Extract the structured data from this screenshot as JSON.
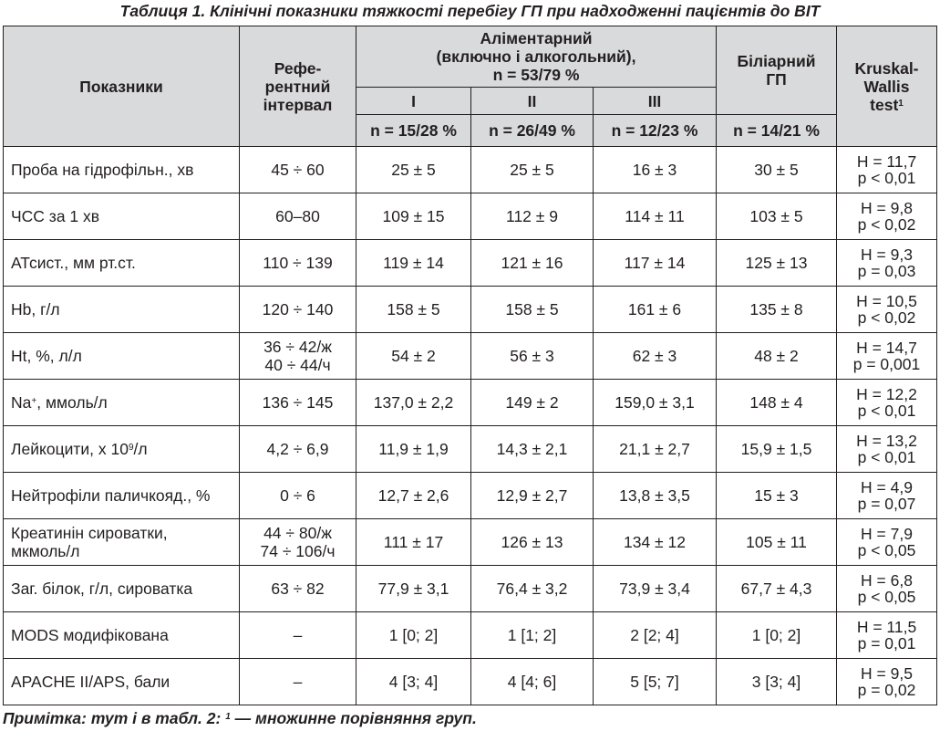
{
  "caption": "Таблиця 1. Клінічні показники тяжкості перебігу ГП при надходженні пацієнтів до ВІТ",
  "header": {
    "indicator": "Показники",
    "reference": [
      "Рефе-",
      "рентний",
      "інтервал"
    ],
    "alimentary": [
      "Аліментарний",
      "(включно і алкогольний),",
      "n = 53/79 %"
    ],
    "grades": [
      "I",
      "II",
      "III"
    ],
    "grade_n": [
      "n = 15/28 %",
      "n = 26/49 %",
      "n = 12/23 %"
    ],
    "biliary": [
      "Біліарний",
      "ГП"
    ],
    "biliary_n": "n = 14/21 %",
    "kw": [
      "Kruskal-",
      "Wallis",
      "test"
    ],
    "kw_sup": "1"
  },
  "rows": [
    {
      "indicator": "Проба на гідрофільн., хв",
      "ref": "45 ÷ 60",
      "g1": "25 ± 5",
      "g2": "25 ± 5",
      "g3": "16 ± 3",
      "bil": "30 ± 5",
      "h": "H = 11,7",
      "p": "p < 0,01"
    },
    {
      "indicator": "ЧСС за 1 хв",
      "ref": "60–80",
      "g1": "109 ± 15",
      "g2": "112 ± 9",
      "g3": "114 ± 11",
      "bil": "103 ± 5",
      "h": "H = 9,8",
      "p": "p < 0,02"
    },
    {
      "indicator": "АТсист., мм рт.ст.",
      "ref": "110 ÷ 139",
      "g1": "119 ± 14",
      "g2": "121 ± 16",
      "g3": "117 ± 14",
      "bil": "125 ± 13",
      "h": "H = 9,3",
      "p": "p = 0,03"
    },
    {
      "indicator": "Hb, г/л",
      "ref": "120 ÷ 140",
      "g1": "158 ± 5",
      "g2": "158 ± 5",
      "g3": "161 ± 6",
      "bil": "135 ± 8",
      "h": "H = 10,5",
      "p": "p < 0,02"
    },
    {
      "indicator": "Ht, %, л/л",
      "ref": "36 ÷ 42/ж",
      "ref2": "40 ÷ 44/ч",
      "g1": "54 ± 2",
      "g2": "56 ± 3",
      "g3": "62 ± 3",
      "bil": "48 ± 2",
      "h": "H = 14,7",
      "p": "p = 0,001"
    },
    {
      "indicator": "Na",
      "indicator_sup": "+",
      "indicator_tail": ", ммоль/л",
      "ref": "136 ÷ 145",
      "g1": "137,0 ± 2,2",
      "g2": "149 ± 2",
      "g3": "159,0 ± 3,1",
      "bil": "148 ± 4",
      "h": "H = 12,2",
      "p": "p < 0,01"
    },
    {
      "indicator": "Лейкоцити, х 10",
      "indicator_sup": "9",
      "indicator_tail": "/л",
      "ref": "4,2 ÷ 6,9",
      "g1": "11,9 ± 1,9",
      "g2": "14,3 ± 2,1",
      "g3": "21,1 ± 2,7",
      "bil": "15,9 ± 1,5",
      "h": "H = 13,2",
      "p": "p < 0,01"
    },
    {
      "indicator": "Нейтрофіли паличкояд., %",
      "ref": "0 ÷ 6",
      "g1": "12,7 ± 2,6",
      "g2": "12,9 ± 2,7",
      "g3": "13,8 ± 3,5",
      "bil": "15 ± 3",
      "h": "H = 4,9",
      "p": "p = 0,07"
    },
    {
      "indicator": "Креатинін сироватки,",
      "indicator2": "мкмоль/л",
      "ref": "44 ÷ 80/ж",
      "ref2": "74 ÷ 106/ч",
      "g1": "111 ± 17",
      "g2": "126 ± 13",
      "g3": "134 ± 12",
      "bil": "105 ± 11",
      "h": "H = 7,9",
      "p": "p < 0,05"
    },
    {
      "indicator": "Заг. білок, г/л, сироватка",
      "ref": "63 ÷ 82",
      "g1": "77,9 ± 3,1",
      "g2": "76,4 ± 3,2",
      "g3": "73,9 ± 3,4",
      "bil": "67,7 ± 4,3",
      "h": "H = 6,8",
      "p": "p < 0,05"
    },
    {
      "indicator": "MODS модифікована",
      "ref": "–",
      "g1": "1 [0; 2]",
      "g2": "1 [1; 2]",
      "g3": "2 [2; 4]",
      "bil": "1 [0; 2]",
      "h": "H = 11,5",
      "p": "p = 0,01"
    },
    {
      "indicator": "APACHE II/APS, бали",
      "ref": "–",
      "g1": "4 [3; 4]",
      "g2": "4 [4; 6]",
      "g3": "5 [5; 7]",
      "bil": "3 [3; 4]",
      "h": "H = 9,5",
      "p": "p = 0,02"
    }
  ],
  "note": {
    "head": "Примітка: тут і в табл. 2: ",
    "sup": "1",
    "tail": " — множинне порівняння груп."
  }
}
